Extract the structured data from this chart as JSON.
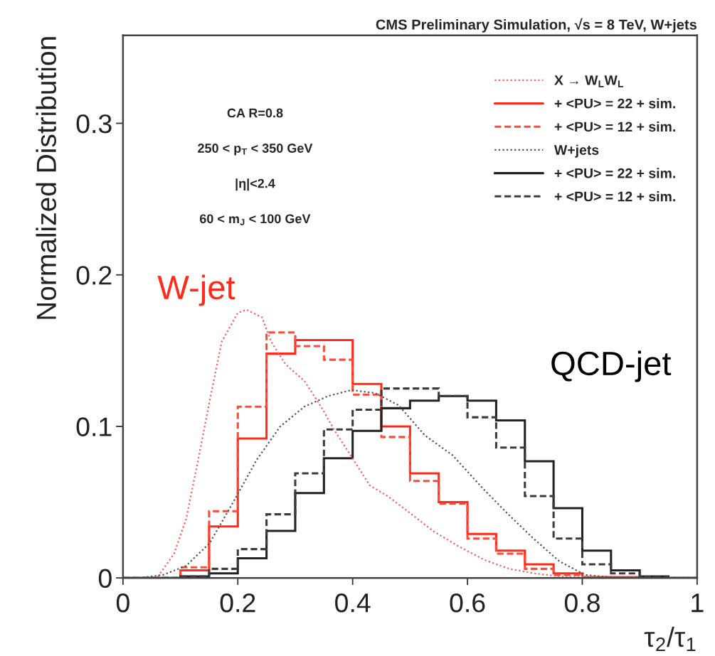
{
  "chart_data": {
    "type": "histogram",
    "title": "CMS Preliminary Simulation, √s = 8 TeV, W+jets",
    "xlabel": "τ$_{2}$/τ$_{1}$",
    "ylabel": "Normalized Distribution",
    "xlim": [
      0,
      1
    ],
    "ylim": [
      0,
      0.358
    ],
    "xticks": [
      0,
      0.2,
      0.4,
      0.6,
      0.8,
      1
    ],
    "yticks": [
      0,
      0.1,
      0.2,
      0.3
    ],
    "bins": [
      0,
      0.05,
      0.1,
      0.15,
      0.2,
      0.25,
      0.3,
      0.35,
      0.4,
      0.45,
      0.5,
      0.55,
      0.6,
      0.65,
      0.7,
      0.75,
      0.8,
      0.85,
      0.9,
      0.95,
      1
    ],
    "legend": "top right",
    "grid": false,
    "annotations": [
      "CA R=0.8",
      "250 < p$_{T}$ < 350 GeV",
      "|η|<2.4",
      "60 < m$_{J}$ < 100 GeV",
      "W-jet",
      "QCD-jet"
    ],
    "series": [
      {
        "name": "X → W$_{L}$W$_{L}$",
        "type": "line",
        "color": "#ff6060",
        "line_style": "dotted",
        "x": [
          0.061,
          0.089,
          0.11,
          0.131,
          0.151,
          0.172,
          0.2,
          0.215,
          0.242,
          0.258,
          0.283,
          0.316,
          0.345,
          0.369,
          0.398,
          0.43,
          0.461,
          0.496,
          0.54,
          0.584,
          0.629,
          0.673,
          0.717,
          0.761,
          0.805,
          0.95
        ],
        "values": [
          0.001,
          0.016,
          0.039,
          0.078,
          0.117,
          0.156,
          0.175,
          0.177,
          0.172,
          0.156,
          0.141,
          0.13,
          0.113,
          0.097,
          0.08,
          0.061,
          0.054,
          0.044,
          0.031,
          0.021,
          0.012,
          0.006,
          0.003,
          0.001,
          0.0005,
          0
        ]
      },
      {
        "name": "+ <PU> = 22 + sim.",
        "color": "#ff2a1a",
        "line_style": "solid",
        "values": [
          0,
          0,
          0.005,
          0.034,
          0.092,
          0.148,
          0.157,
          0.157,
          0.128,
          0.1,
          0.069,
          0.05,
          0.029,
          0.018,
          0.009,
          0.003,
          0.0005,
          0.0005,
          0,
          0
        ]
      },
      {
        "name": "+ <PU> = 12 + sim.",
        "color": "#ff4a3a",
        "line_style": "dashed",
        "values": [
          0,
          0,
          0.007,
          0.044,
          0.113,
          0.162,
          0.153,
          0.144,
          0.121,
          0.093,
          0.064,
          0.049,
          0.026,
          0.016,
          0.006,
          0.002,
          0.0005,
          0,
          0,
          0
        ]
      },
      {
        "name": "W+jets",
        "type": "line",
        "color": "#555555",
        "line_style": "dotted",
        "x": [
          0.028,
          0.07,
          0.11,
          0.151,
          0.192,
          0.233,
          0.274,
          0.316,
          0.357,
          0.398,
          0.439,
          0.48,
          0.526,
          0.574,
          0.627,
          0.671,
          0.715,
          0.76,
          0.805,
          0.849,
          0.893
        ],
        "values": [
          0,
          0.002,
          0.008,
          0.023,
          0.05,
          0.078,
          0.1,
          0.113,
          0.12,
          0.124,
          0.122,
          0.114,
          0.094,
          0.081,
          0.059,
          0.042,
          0.026,
          0.011,
          0.002,
          0.0005,
          0
        ]
      },
      {
        "name": "+ <PU> = 22 + sim.",
        "color": "#222222",
        "line_style": "solid",
        "values": [
          0,
          0,
          0.001,
          0.003,
          0.013,
          0.031,
          0.056,
          0.079,
          0.097,
          0.112,
          0.117,
          0.12,
          0.117,
          0.104,
          0.077,
          0.046,
          0.018,
          0.005,
          0.001,
          0
        ]
      },
      {
        "name": "+ <PU> = 12 + sim.",
        "color": "#3c3c3c",
        "line_style": "dashed",
        "values": [
          0,
          0,
          0.001,
          0.006,
          0.019,
          0.042,
          0.069,
          0.098,
          0.111,
          0.125,
          0.125,
          0.12,
          0.106,
          0.086,
          0.054,
          0.026,
          0.009,
          0.003,
          0.0005,
          0
        ]
      }
    ]
  }
}
